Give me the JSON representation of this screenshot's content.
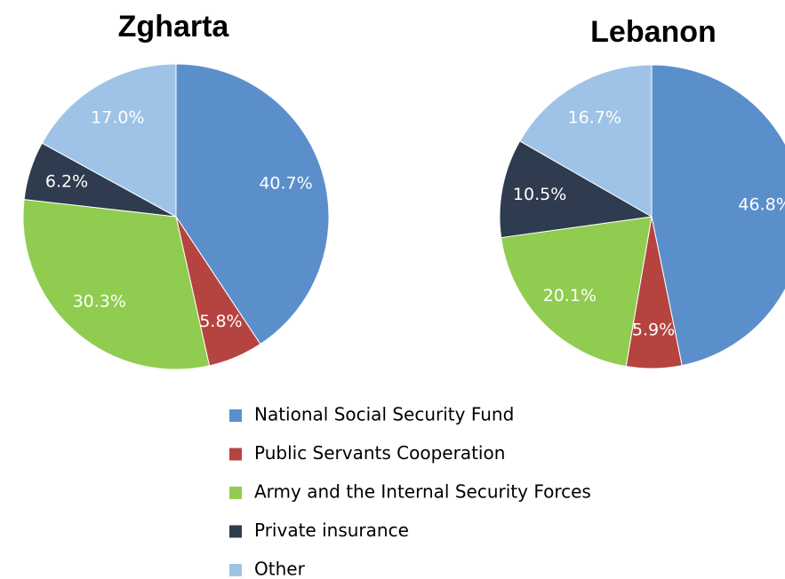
{
  "chart_data": [
    {
      "type": "pie",
      "title": "Zgharta",
      "categories": [
        "National Social Security Fund",
        "Public Servants Cooperation",
        "Army and the Internal Security Forces",
        "Private insurance",
        "Other"
      ],
      "values": [
        40.7,
        5.8,
        30.3,
        6.2,
        17.0
      ],
      "value_labels": [
        "40.7%",
        "5.8%",
        "30.3%",
        "6.2%",
        "17.0%"
      ],
      "colors": [
        "#5b8fcb",
        "#b5433f",
        "#90cc4f",
        "#2f3b4e",
        "#9fc3e6"
      ]
    },
    {
      "type": "pie",
      "title": "Lebanon",
      "categories": [
        "National Social Security Fund",
        "Public Servants Cooperation",
        "Army and the Internal Security Forces",
        "Private insurance",
        "Other"
      ],
      "values": [
        46.8,
        5.9,
        20.1,
        10.5,
        16.7
      ],
      "value_labels": [
        "46.8%",
        "5.9%",
        "20.1%",
        "10.5%",
        "16.7%"
      ],
      "colors": [
        "#5b8fcb",
        "#b5433f",
        "#90cc4f",
        "#2f3b4e",
        "#9fc3e6"
      ]
    }
  ]
}
